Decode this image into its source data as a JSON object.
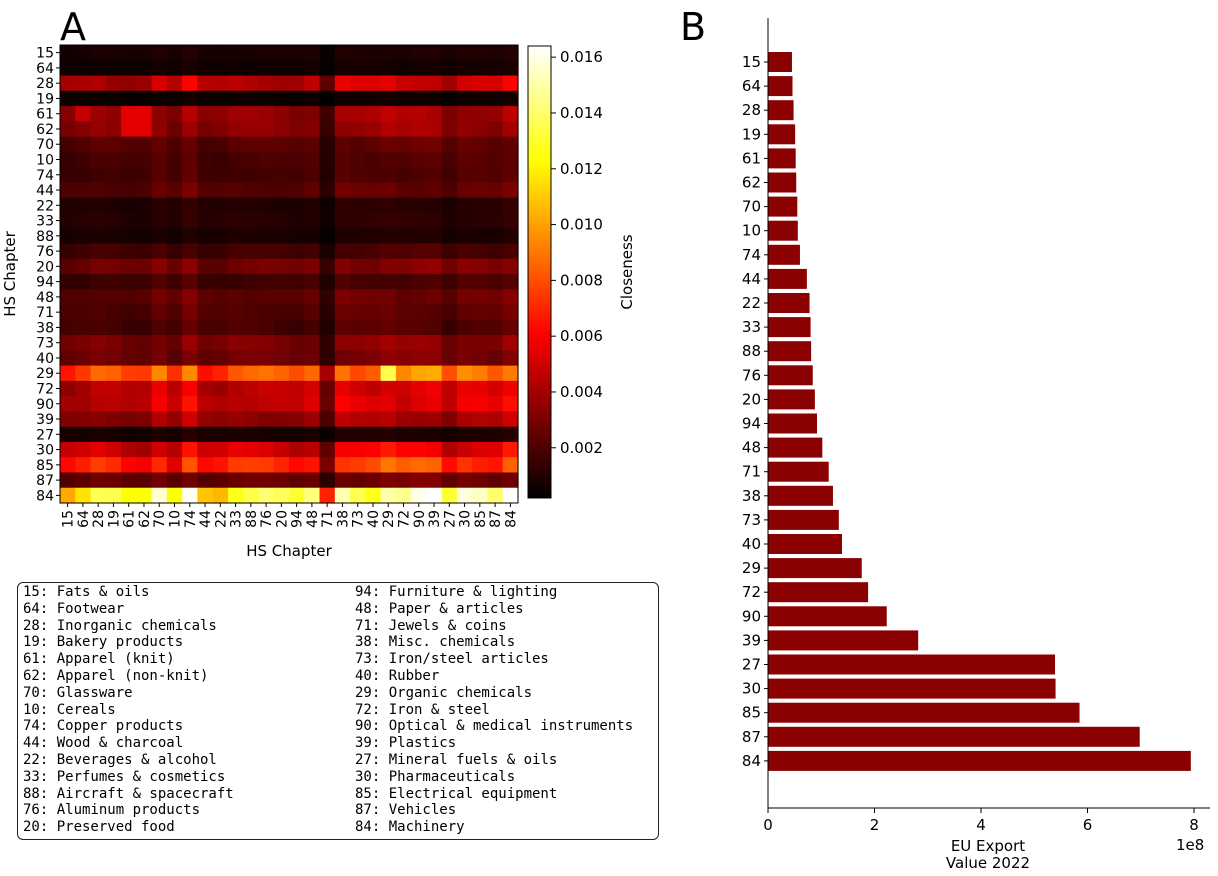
{
  "panel_labels": {
    "a": "A",
    "b": "B"
  },
  "chart_data": [
    {
      "type": "heatmap",
      "title": "",
      "xlabel": "HS Chapter",
      "ylabel": "HS Chapter",
      "colorbar_label": "Closeness",
      "colormap": "hot",
      "vmin": 0.0002,
      "vmax": 0.0164,
      "colorbar_ticks": [
        "0.002",
        "0.004",
        "0.006",
        "0.008",
        "0.010",
        "0.012",
        "0.014",
        "0.016"
      ],
      "categories": [
        "15",
        "64",
        "28",
        "19",
        "61",
        "62",
        "70",
        "10",
        "74",
        "44",
        "22",
        "33",
        "88",
        "76",
        "20",
        "94",
        "48",
        "71",
        "38",
        "73",
        "40",
        "29",
        "72",
        "90",
        "39",
        "27",
        "30",
        "85",
        "87",
        "84"
      ],
      "row_mean_closeness": [
        0.0008,
        0.0006,
        0.0044,
        0.0005,
        0.0035,
        0.0033,
        0.0022,
        0.0019,
        0.0018,
        0.0022,
        0.001,
        0.0011,
        0.0008,
        0.0017,
        0.0028,
        0.0017,
        0.0024,
        0.0021,
        0.0019,
        0.003,
        0.0027,
        0.008,
        0.0046,
        0.0048,
        0.0036,
        0.0008,
        0.005,
        0.0068,
        0.0025,
        0.013
      ],
      "column_factor": [
        0.85,
        0.9,
        1.0,
        0.95,
        0.85,
        0.85,
        1.1,
        0.9,
        1.25,
        0.9,
        0.9,
        1.0,
        1.0,
        1.0,
        0.95,
        0.9,
        1.0,
        0.5,
        1.15,
        1.1,
        1.1,
        1.2,
        1.1,
        1.15,
        1.15,
        0.9,
        1.1,
        1.1,
        1.05,
        1.25
      ],
      "highlights": [
        {
          "row": "29",
          "col": "29",
          "value": 0.0135
        },
        {
          "row": "84",
          "col": "74",
          "value": 0.0162
        },
        {
          "row": "84",
          "col": "84",
          "value": 0.0164
        },
        {
          "row": "61",
          "col": "61",
          "value": 0.0055
        },
        {
          "row": "61",
          "col": "62",
          "value": 0.0055
        },
        {
          "row": "62",
          "col": "61",
          "value": 0.0055
        },
        {
          "row": "62",
          "col": "62",
          "value": 0.0055
        },
        {
          "row": "61",
          "col": "64",
          "value": 0.0048
        }
      ]
    },
    {
      "type": "bar",
      "orientation": "horizontal",
      "title": "",
      "xlabel": "EU Export\nValue 2022",
      "ylabel": "",
      "x_scale_label": "1e8",
      "xlim": [
        0,
        8.3
      ],
      "xticks": [
        0,
        2,
        4,
        6,
        8
      ],
      "bar_color": "#8b0000",
      "categories": [
        "15",
        "64",
        "28",
        "19",
        "61",
        "62",
        "70",
        "10",
        "74",
        "44",
        "22",
        "33",
        "88",
        "76",
        "20",
        "94",
        "48",
        "71",
        "38",
        "73",
        "40",
        "29",
        "72",
        "90",
        "39",
        "27",
        "30",
        "85",
        "87",
        "84"
      ],
      "values": [
        0.45,
        0.46,
        0.48,
        0.51,
        0.52,
        0.53,
        0.55,
        0.56,
        0.6,
        0.73,
        0.78,
        0.8,
        0.81,
        0.84,
        0.88,
        0.92,
        1.02,
        1.14,
        1.22,
        1.33,
        1.39,
        1.76,
        1.88,
        2.23,
        2.82,
        5.39,
        5.4,
        5.85,
        6.98,
        7.94
      ]
    }
  ],
  "legend": {
    "left": [
      "15: Fats & oils",
      "64: Footwear",
      "28: Inorganic chemicals",
      "19: Bakery products",
      "61: Apparel (knit)",
      "62: Apparel (non-knit)",
      "70: Glassware",
      "10: Cereals",
      "74: Copper products",
      "44: Wood & charcoal",
      "22: Beverages & alcohol",
      "33: Perfumes & cosmetics",
      "88: Aircraft & spacecraft",
      "76: Aluminum products",
      "20: Preserved food"
    ],
    "right": [
      "94: Furniture & lighting",
      "48: Paper & articles",
      "71: Jewels & coins",
      "38: Misc. chemicals",
      "73: Iron/steel articles",
      "40: Rubber",
      "29: Organic chemicals",
      "72: Iron & steel",
      "90: Optical & medical instruments",
      "39: Plastics",
      "27: Mineral fuels & oils",
      "30: Pharmaceuticals",
      "85: Electrical equipment",
      "87: Vehicles",
      "84: Machinery"
    ]
  }
}
